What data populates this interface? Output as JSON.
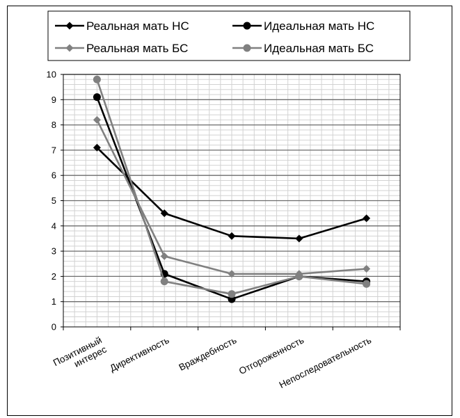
{
  "chart_data": {
    "type": "line",
    "categories": [
      "Позитивный интерес",
      "Директивность",
      "Враждебность",
      "Отгороженность",
      "Непоследовательность"
    ],
    "category_lines": [
      [
        "Позитивный",
        "интерес"
      ],
      [
        "Директивность"
      ],
      [
        "Враждебность"
      ],
      [
        "Отгороженность"
      ],
      [
        "Непоследовательность"
      ]
    ],
    "series": [
      {
        "name": "Реальная мать НС",
        "values": [
          7.1,
          4.5,
          3.6,
          3.5,
          4.3
        ],
        "color": "#000000",
        "marker": "diamond"
      },
      {
        "name": "Идеальная мать НС",
        "values": [
          9.1,
          2.1,
          1.1,
          2.0,
          1.8
        ],
        "color": "#000000",
        "marker": "circle"
      },
      {
        "name": "Реальная мать БС",
        "values": [
          8.2,
          2.8,
          2.1,
          2.1,
          2.3
        ],
        "color": "#808080",
        "marker": "diamond"
      },
      {
        "name": "Идеальная мать БС",
        "values": [
          9.8,
          1.8,
          1.3,
          2.0,
          1.7
        ],
        "color": "#808080",
        "marker": "circle"
      }
    ],
    "ylim": [
      0,
      10
    ],
    "yticks": [
      "0",
      "1",
      "2",
      "3",
      "4",
      "5",
      "6",
      "7",
      "8",
      "9",
      "10"
    ],
    "grid": true,
    "legend_position": "top"
  }
}
